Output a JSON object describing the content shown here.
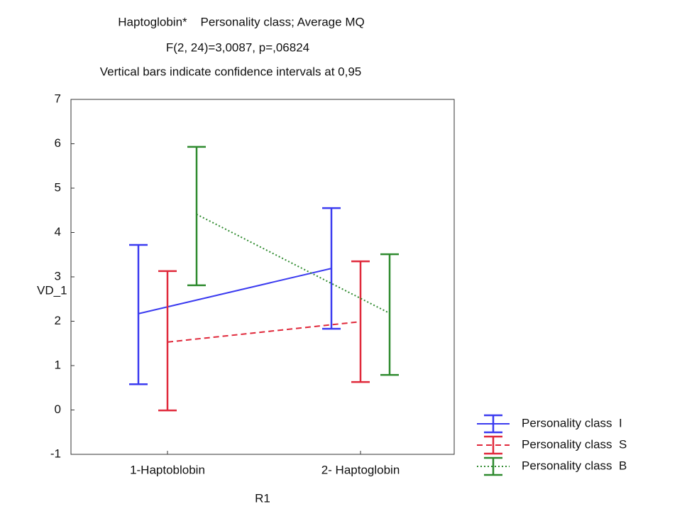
{
  "chart_data": {
    "type": "line",
    "title": "Haptoglobin*    Personality class; Average MQ",
    "subtitle": "F(2, 24)=3,0087, p=,06824",
    "annotation": "Vertical bars indicate confidence intervals at 0,95",
    "x_label": "R1",
    "y_label": "VD_1",
    "categories": [
      "1-Haptoblobin",
      "2- Haptoglobin"
    ],
    "series": [
      {
        "name": "Personality class  I",
        "color": "#3b3bf0",
        "linestyle": "solid",
        "values": [
          2.17,
          3.19
        ],
        "ci_low": [
          0.58,
          1.83
        ],
        "ci_high": [
          3.72,
          4.55
        ]
      },
      {
        "name": "Personality class  S",
        "color": "#e0283a",
        "linestyle": "dashed",
        "values": [
          1.53,
          1.99
        ],
        "ci_low": [
          -0.01,
          0.63
        ],
        "ci_high": [
          3.13,
          3.35
        ]
      },
      {
        "name": "Personality class  B",
        "color": "#2e8a2e",
        "linestyle": "dotted",
        "values": [
          4.41,
          2.18
        ],
        "ci_low": [
          2.81,
          0.79
        ],
        "ci_high": [
          5.93,
          3.51
        ]
      }
    ],
    "ylim": [
      -1,
      7
    ],
    "yticks": [
      -1,
      0,
      1,
      2,
      3,
      4,
      5,
      6,
      7
    ],
    "grid": false,
    "legend": "lower right"
  }
}
